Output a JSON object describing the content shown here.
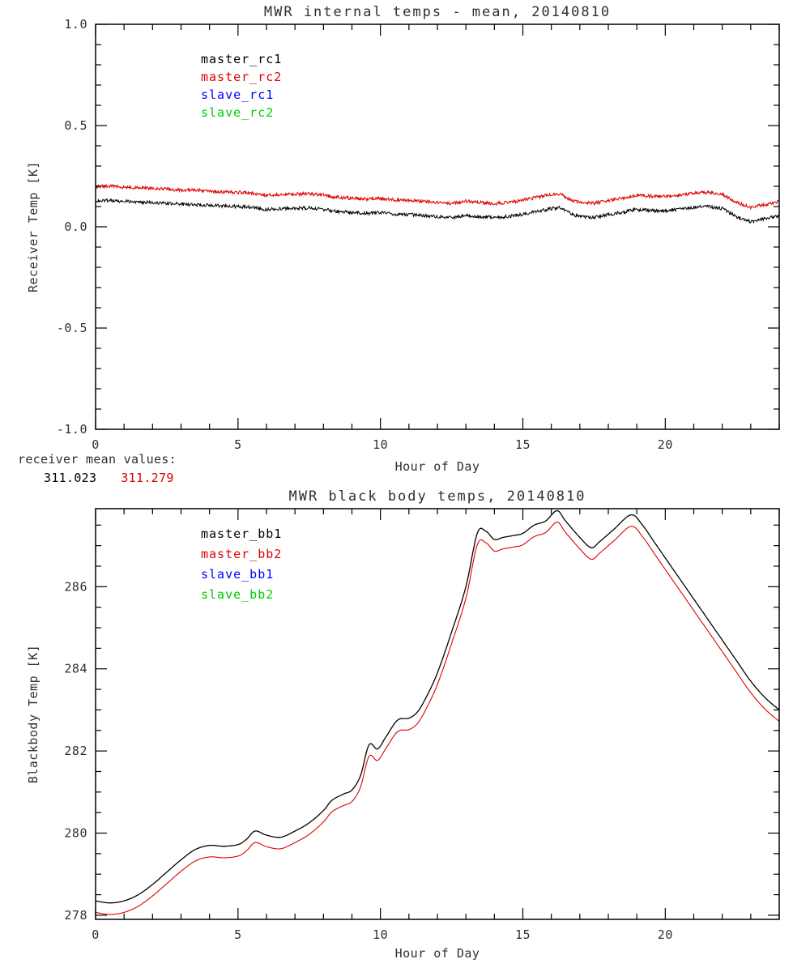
{
  "colors": {
    "background": "#ffffff",
    "axis": "#000000",
    "text": "#2f2f2f",
    "black": "#000000",
    "red": "#dd0000",
    "blue": "#0000ff",
    "green": "#00cc00"
  },
  "receiver_means": {
    "label": "receiver mean values:",
    "values": [
      {
        "text": "311.023",
        "color": "#000000"
      },
      {
        "text": "311.279",
        "color": "#dd0000"
      }
    ]
  },
  "chart_data": [
    {
      "type": "line",
      "name": "receiver-temps",
      "title": "MWR internal temps - mean, 20140810",
      "xlabel": "Hour of Day",
      "ylabel": "Receiver Temp [K]",
      "xlim": [
        0,
        24
      ],
      "ylim": [
        -1.0,
        1.0
      ],
      "xticks": [
        0,
        5,
        10,
        15,
        20
      ],
      "xtick_labels": [
        "0",
        "5",
        "10",
        "15",
        "20"
      ],
      "yticks": [
        -1.0,
        -0.5,
        0.0,
        0.5,
        1.0
      ],
      "ytick_labels": [
        "-1.0",
        "-0.5",
        "0.0",
        "0.5",
        "1.0"
      ],
      "xminor": 1,
      "yminor": 0.1,
      "grid": false,
      "legend_position": "inside-top-left",
      "legend": [
        {
          "label": "master_rc1",
          "color": "#000000"
        },
        {
          "label": "master_rc2",
          "color": "#dd0000"
        },
        {
          "label": "slave_rc1",
          "color": "#0000ff"
        },
        {
          "label": "slave_rc2",
          "color": "#00cc00"
        }
      ],
      "series": [
        {
          "name": "master_rc1",
          "color": "#000000",
          "smooth": false,
          "noise": 0.008,
          "width": 1.0,
          "points": [
            [
              0,
              0.13
            ],
            [
              0.5,
              0.13
            ],
            [
              1,
              0.126
            ],
            [
              1.5,
              0.122
            ],
            [
              2,
              0.12
            ],
            [
              2.5,
              0.116
            ],
            [
              3,
              0.112
            ],
            [
              3.5,
              0.11
            ],
            [
              4,
              0.106
            ],
            [
              4.5,
              0.102
            ],
            [
              5,
              0.1
            ],
            [
              5.5,
              0.096
            ],
            [
              6,
              0.086
            ],
            [
              6.5,
              0.09
            ],
            [
              7,
              0.091
            ],
            [
              7.5,
              0.094
            ],
            [
              8,
              0.086
            ],
            [
              8.5,
              0.076
            ],
            [
              9,
              0.071
            ],
            [
              9.5,
              0.066
            ],
            [
              10,
              0.07
            ],
            [
              10.5,
              0.062
            ],
            [
              11,
              0.061
            ],
            [
              11.5,
              0.056
            ],
            [
              12,
              0.051
            ],
            [
              12.5,
              0.046
            ],
            [
              13,
              0.056
            ],
            [
              13.5,
              0.05
            ],
            [
              14,
              0.045
            ],
            [
              14.5,
              0.051
            ],
            [
              15,
              0.061
            ],
            [
              15.5,
              0.076
            ],
            [
              16,
              0.09
            ],
            [
              16.3,
              0.094
            ],
            [
              16.7,
              0.062
            ],
            [
              17,
              0.051
            ],
            [
              17.5,
              0.046
            ],
            [
              18,
              0.061
            ],
            [
              18.5,
              0.071
            ],
            [
              19,
              0.086
            ],
            [
              19.5,
              0.081
            ],
            [
              20,
              0.08
            ],
            [
              20.5,
              0.086
            ],
            [
              21,
              0.096
            ],
            [
              21.5,
              0.1
            ],
            [
              22,
              0.09
            ],
            [
              22.5,
              0.05
            ],
            [
              23,
              0.026
            ],
            [
              23.5,
              0.04
            ],
            [
              24,
              0.056
            ]
          ]
        },
        {
          "name": "master_rc2",
          "color": "#dd0000",
          "smooth": false,
          "noise": 0.008,
          "width": 1.0,
          "points": [
            [
              0,
              0.2
            ],
            [
              0.5,
              0.2
            ],
            [
              1,
              0.196
            ],
            [
              1.5,
              0.192
            ],
            [
              2,
              0.19
            ],
            [
              2.5,
              0.186
            ],
            [
              3,
              0.182
            ],
            [
              3.5,
              0.18
            ],
            [
              4,
              0.176
            ],
            [
              4.5,
              0.172
            ],
            [
              5,
              0.17
            ],
            [
              5.5,
              0.166
            ],
            [
              6,
              0.156
            ],
            [
              6.5,
              0.16
            ],
            [
              7,
              0.161
            ],
            [
              7.5,
              0.164
            ],
            [
              8,
              0.156
            ],
            [
              8.5,
              0.146
            ],
            [
              9,
              0.141
            ],
            [
              9.5,
              0.136
            ],
            [
              10,
              0.14
            ],
            [
              10.5,
              0.132
            ],
            [
              11,
              0.131
            ],
            [
              11.5,
              0.126
            ],
            [
              12,
              0.121
            ],
            [
              12.5,
              0.116
            ],
            [
              13,
              0.126
            ],
            [
              13.5,
              0.12
            ],
            [
              14,
              0.115
            ],
            [
              14.5,
              0.121
            ],
            [
              15,
              0.131
            ],
            [
              15.5,
              0.146
            ],
            [
              16,
              0.16
            ],
            [
              16.3,
              0.164
            ],
            [
              16.7,
              0.132
            ],
            [
              17,
              0.121
            ],
            [
              17.5,
              0.116
            ],
            [
              18,
              0.131
            ],
            [
              18.5,
              0.141
            ],
            [
              19,
              0.156
            ],
            [
              19.5,
              0.151
            ],
            [
              20,
              0.15
            ],
            [
              20.5,
              0.156
            ],
            [
              21,
              0.166
            ],
            [
              21.5,
              0.17
            ],
            [
              22,
              0.16
            ],
            [
              22.5,
              0.12
            ],
            [
              23,
              0.096
            ],
            [
              23.5,
              0.11
            ],
            [
              24,
              0.126
            ]
          ]
        }
      ]
    },
    {
      "type": "line",
      "name": "blackbody-temps",
      "title": "MWR black body temps, 20140810",
      "xlabel": "Hour of Day",
      "ylabel": "Blackbody Temp [K]",
      "xlim": [
        0,
        24
      ],
      "ylim": [
        277.9,
        287.9
      ],
      "xticks": [
        0,
        5,
        10,
        15,
        20
      ],
      "xtick_labels": [
        "0",
        "5",
        "10",
        "15",
        "20"
      ],
      "yticks": [
        278,
        280,
        282,
        284,
        286
      ],
      "ytick_labels": [
        "278",
        "280",
        "282",
        "284",
        "286"
      ],
      "xminor": 1,
      "yminor": 0.5,
      "grid": false,
      "legend_position": "inside-top-left",
      "legend": [
        {
          "label": "master_bb1",
          "color": "#000000"
        },
        {
          "label": "master_bb2",
          "color": "#dd0000"
        },
        {
          "label": "slave_bb1",
          "color": "#0000ff"
        },
        {
          "label": "slave_bb2",
          "color": "#00cc00"
        }
      ],
      "series": [
        {
          "name": "master_bb1",
          "color": "#000000",
          "smooth": true,
          "noise": 0,
          "width": 1.3,
          "points": [
            [
              0,
              278.35
            ],
            [
              0.5,
              278.3
            ],
            [
              1,
              278.35
            ],
            [
              1.5,
              278.5
            ],
            [
              2,
              278.75
            ],
            [
              2.5,
              279.05
            ],
            [
              3,
              279.35
            ],
            [
              3.5,
              279.6
            ],
            [
              4,
              279.7
            ],
            [
              4.5,
              279.68
            ],
            [
              5,
              279.72
            ],
            [
              5.3,
              279.85
            ],
            [
              5.6,
              280.05
            ],
            [
              6,
              279.95
            ],
            [
              6.5,
              279.9
            ],
            [
              7,
              280.05
            ],
            [
              7.5,
              280.25
            ],
            [
              8,
              280.55
            ],
            [
              8.3,
              280.8
            ],
            [
              8.7,
              280.95
            ],
            [
              9,
              281.05
            ],
            [
              9.3,
              281.4
            ],
            [
              9.6,
              282.15
            ],
            [
              9.9,
              282.05
            ],
            [
              10.2,
              282.35
            ],
            [
              10.6,
              282.75
            ],
            [
              11,
              282.8
            ],
            [
              11.3,
              282.95
            ],
            [
              11.6,
              283.3
            ],
            [
              12,
              283.9
            ],
            [
              12.5,
              284.9
            ],
            [
              13,
              286.0
            ],
            [
              13.4,
              287.3
            ],
            [
              13.7,
              287.35
            ],
            [
              14,
              287.15
            ],
            [
              14.3,
              287.2
            ],
            [
              14.7,
              287.25
            ],
            [
              15,
              287.3
            ],
            [
              15.4,
              287.5
            ],
            [
              15.8,
              287.6
            ],
            [
              16.2,
              287.85
            ],
            [
              16.5,
              287.6
            ],
            [
              17,
              287.2
            ],
            [
              17.4,
              286.95
            ],
            [
              17.7,
              287.1
            ],
            [
              18.2,
              287.4
            ],
            [
              18.8,
              287.75
            ],
            [
              19.2,
              287.5
            ],
            [
              19.6,
              287.1
            ],
            [
              20,
              286.7
            ],
            [
              20.5,
              286.2
            ],
            [
              21,
              285.7
            ],
            [
              21.5,
              285.2
            ],
            [
              22,
              284.7
            ],
            [
              22.5,
              284.2
            ],
            [
              23,
              283.7
            ],
            [
              23.5,
              283.3
            ],
            [
              24,
              283.0
            ]
          ]
        },
        {
          "name": "master_bb2",
          "color": "#dd0000",
          "smooth": true,
          "noise": 0,
          "width": 1.1,
          "points": [
            [
              0,
              278.07
            ],
            [
              0.5,
              278.02
            ],
            [
              1,
              278.07
            ],
            [
              1.5,
              278.22
            ],
            [
              2,
              278.47
            ],
            [
              2.5,
              278.77
            ],
            [
              3,
              279.07
            ],
            [
              3.5,
              279.32
            ],
            [
              4,
              279.42
            ],
            [
              4.5,
              279.4
            ],
            [
              5,
              279.44
            ],
            [
              5.3,
              279.57
            ],
            [
              5.6,
              279.77
            ],
            [
              6,
              279.67
            ],
            [
              6.5,
              279.62
            ],
            [
              7,
              279.77
            ],
            [
              7.5,
              279.97
            ],
            [
              8,
              280.27
            ],
            [
              8.3,
              280.52
            ],
            [
              8.7,
              280.67
            ],
            [
              9,
              280.77
            ],
            [
              9.3,
              281.12
            ],
            [
              9.6,
              281.87
            ],
            [
              9.9,
              281.77
            ],
            [
              10.2,
              282.07
            ],
            [
              10.6,
              282.47
            ],
            [
              11,
              282.52
            ],
            [
              11.3,
              282.67
            ],
            [
              11.6,
              283.02
            ],
            [
              12,
              283.62
            ],
            [
              12.5,
              284.62
            ],
            [
              13,
              285.72
            ],
            [
              13.4,
              287.02
            ],
            [
              13.7,
              287.07
            ],
            [
              14,
              286.87
            ],
            [
              14.3,
              286.92
            ],
            [
              14.7,
              286.97
            ],
            [
              15,
              287.02
            ],
            [
              15.4,
              287.22
            ],
            [
              15.8,
              287.32
            ],
            [
              16.2,
              287.57
            ],
            [
              16.5,
              287.32
            ],
            [
              17,
              286.92
            ],
            [
              17.4,
              286.67
            ],
            [
              17.7,
              286.82
            ],
            [
              18.2,
              287.12
            ],
            [
              18.8,
              287.47
            ],
            [
              19.2,
              287.22
            ],
            [
              19.6,
              286.82
            ],
            [
              20,
              286.42
            ],
            [
              20.5,
              285.92
            ],
            [
              21,
              285.42
            ],
            [
              21.5,
              284.92
            ],
            [
              22,
              284.42
            ],
            [
              22.5,
              283.92
            ],
            [
              23,
              283.42
            ],
            [
              23.5,
              283.02
            ],
            [
              24,
              282.72
            ]
          ]
        }
      ]
    }
  ]
}
